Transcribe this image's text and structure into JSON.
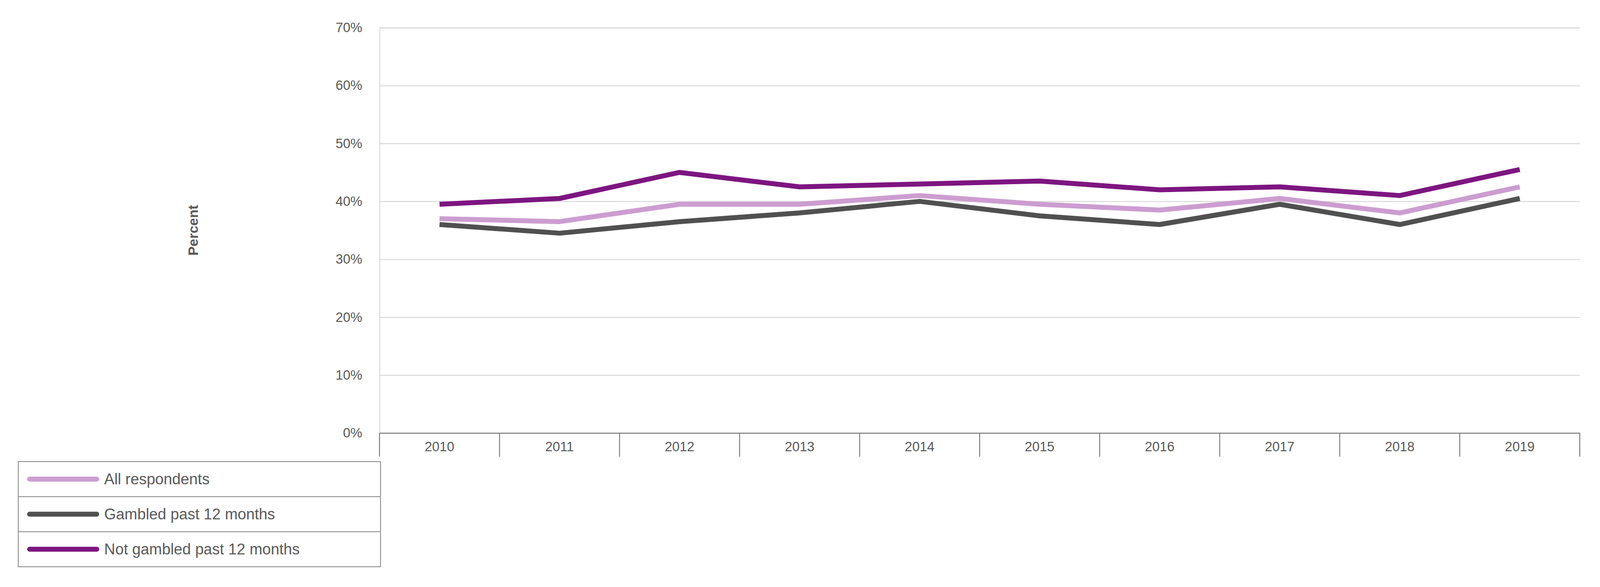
{
  "chart_data": {
    "type": "line",
    "y_label": "Percent",
    "categories": [
      "2010",
      "2011",
      "2012",
      "2013",
      "2014",
      "2015",
      "2016",
      "2017",
      "2018",
      "2019"
    ],
    "series": [
      {
        "name": "All respondents",
        "color": "#cc9dd0",
        "values": [
          37,
          36.5,
          39.5,
          39.5,
          41,
          39.5,
          38.5,
          40.5,
          38,
          42.5
        ]
      },
      {
        "name": "Gambled past 12 months",
        "color": "#505050",
        "values": [
          36,
          34.5,
          36.5,
          38,
          40,
          37.5,
          36,
          39.5,
          36,
          40.5
        ]
      },
      {
        "name": "Not gambled past 12 months",
        "color": "#7d1580",
        "values": [
          39.5,
          40.5,
          45,
          42.5,
          43,
          43.5,
          42,
          42.5,
          41,
          45.5
        ]
      }
    ],
    "ylim": [
      0,
      70
    ],
    "yticks": [
      {
        "value": 0,
        "label": "0%"
      },
      {
        "value": 10,
        "label": "10%"
      },
      {
        "value": 20,
        "label": "20%"
      },
      {
        "value": 30,
        "label": "30%"
      },
      {
        "value": 40,
        "label": "40%"
      },
      {
        "value": 50,
        "label": "50%"
      },
      {
        "value": 60,
        "label": "60%"
      },
      {
        "value": 70,
        "label": "70%"
      }
    ],
    "grid": true,
    "legend": "bottom-left"
  }
}
